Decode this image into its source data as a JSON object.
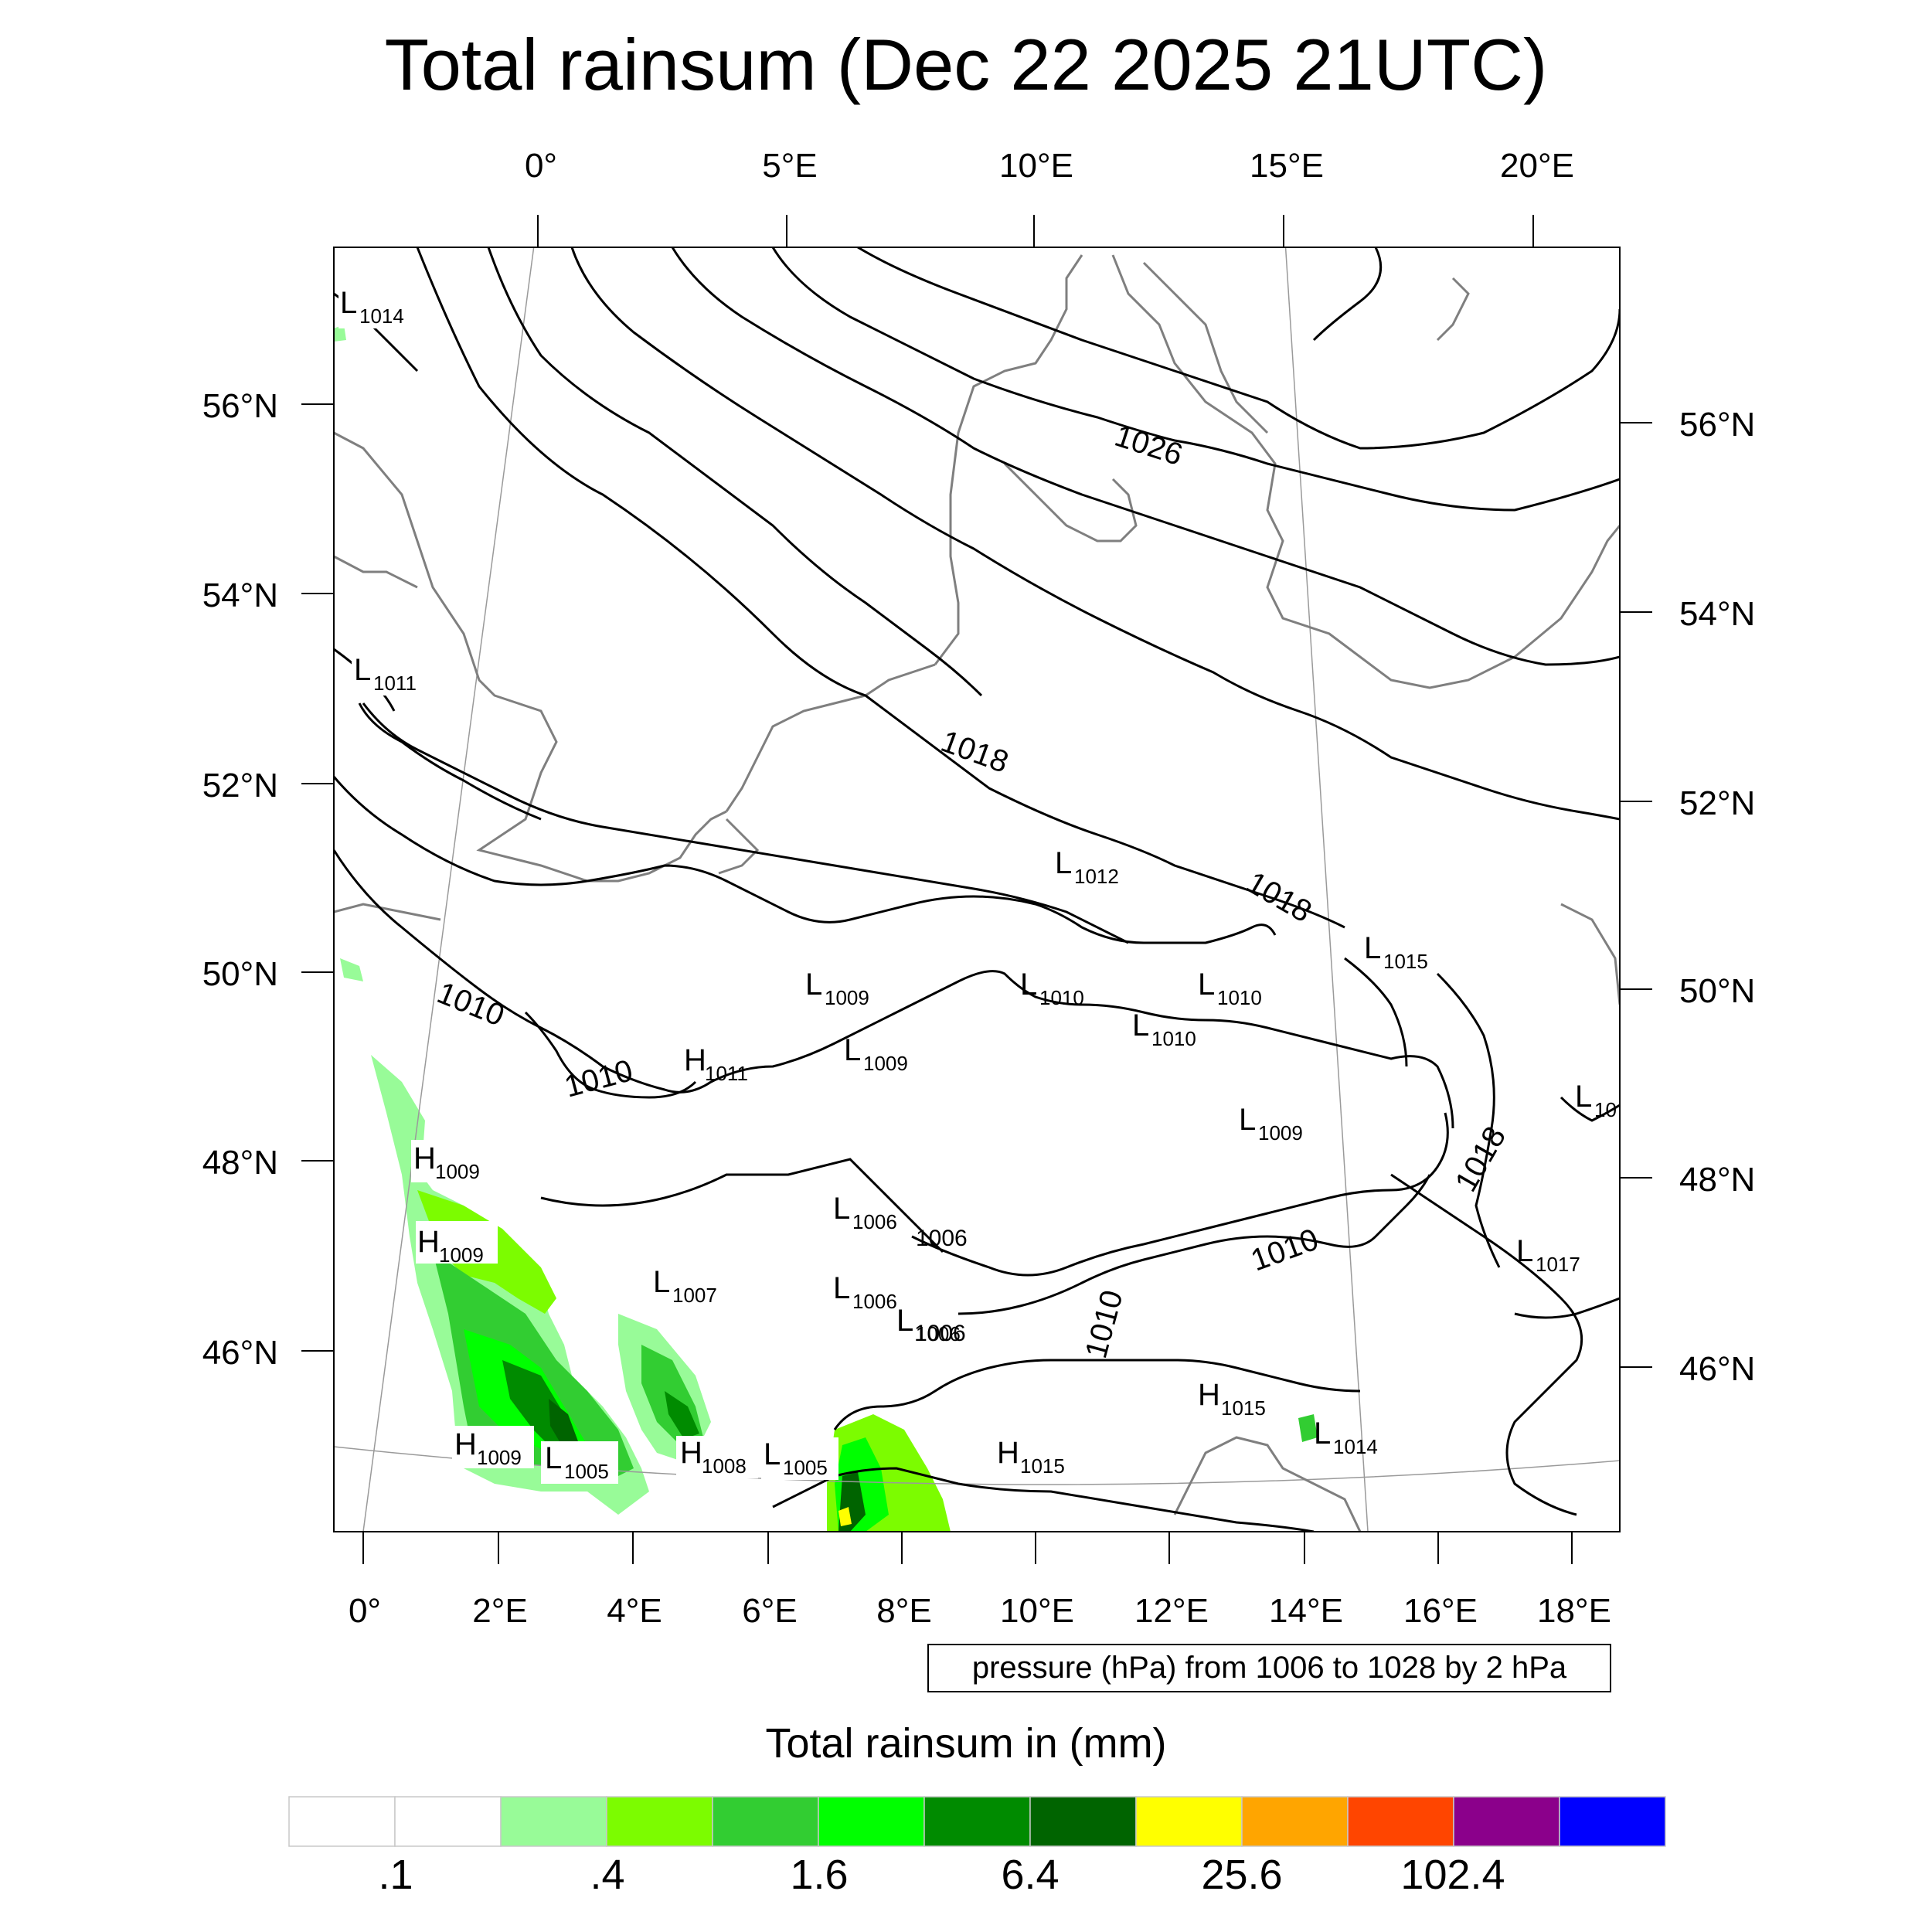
{
  "title": "Total rainsum (Dec 22 2025 21UTC)",
  "top_lon_labels": [
    "0°",
    "5°E",
    "10°E",
    "15°E",
    "20°E"
  ],
  "bottom_lon_labels": [
    "0°",
    "2°E",
    "4°E",
    "6°E",
    "8°E",
    "10°E",
    "12°E",
    "14°E",
    "16°E",
    "18°E"
  ],
  "left_lat_labels": [
    "56°N",
    "54°N",
    "52°N",
    "50°N",
    "48°N",
    "46°N"
  ],
  "right_lat_labels": [
    "56°N",
    "54°N",
    "52°N",
    "50°N",
    "48°N",
    "46°N"
  ],
  "info_text": "pressure (hPa) from 1006 to 1028 by 2 hPa",
  "colorbar": {
    "title": "Total rainsum in (mm)",
    "colors": [
      "#ffffff",
      "#ffffff",
      "#98fb98",
      "#7cfc00",
      "#32cd32",
      "#00ff00",
      "#008b00",
      "#006400",
      "#ffff00",
      "#ffa500",
      "#ff4500",
      "#8b008b",
      "#0000ff"
    ],
    "labels": [
      ".1",
      ".4",
      "1.6",
      "6.4",
      "25.6",
      "102.4"
    ]
  },
  "contour_labels": [
    "1026",
    "1018",
    "1018",
    "1018",
    "1010",
    "1010",
    "1010",
    "1010",
    "1006",
    "1006"
  ],
  "pressure_centers": [
    {
      "type": "L",
      "value": "1014"
    },
    {
      "type": "L",
      "value": "1011"
    },
    {
      "type": "L",
      "value": "1012"
    },
    {
      "type": "L",
      "value": "1015"
    },
    {
      "type": "L",
      "value": "1009"
    },
    {
      "type": "L",
      "value": "1010"
    },
    {
      "type": "L",
      "value": "1010"
    },
    {
      "type": "L",
      "value": "1010"
    },
    {
      "type": "H",
      "value": "1011"
    },
    {
      "type": "L",
      "value": "1009"
    },
    {
      "type": "L",
      "value": "10"
    },
    {
      "type": "L",
      "value": "1009"
    },
    {
      "type": "H",
      "value": "1009"
    },
    {
      "type": "H",
      "value": "1009"
    },
    {
      "type": "L",
      "value": "1006"
    },
    {
      "type": "L",
      "value": "1007"
    },
    {
      "type": "L",
      "value": "1017"
    },
    {
      "type": "L",
      "value": "1006"
    },
    {
      "type": "L",
      "value": "1006"
    },
    {
      "type": "H",
      "value": "1015"
    },
    {
      "type": "H",
      "value": "1009"
    },
    {
      "type": "L",
      "value": "1005"
    },
    {
      "type": "H",
      "value": "1008"
    },
    {
      "type": "L",
      "value": "1005"
    },
    {
      "type": "H",
      "value": "1015"
    },
    {
      "type": "L",
      "value": "1014"
    }
  ]
}
